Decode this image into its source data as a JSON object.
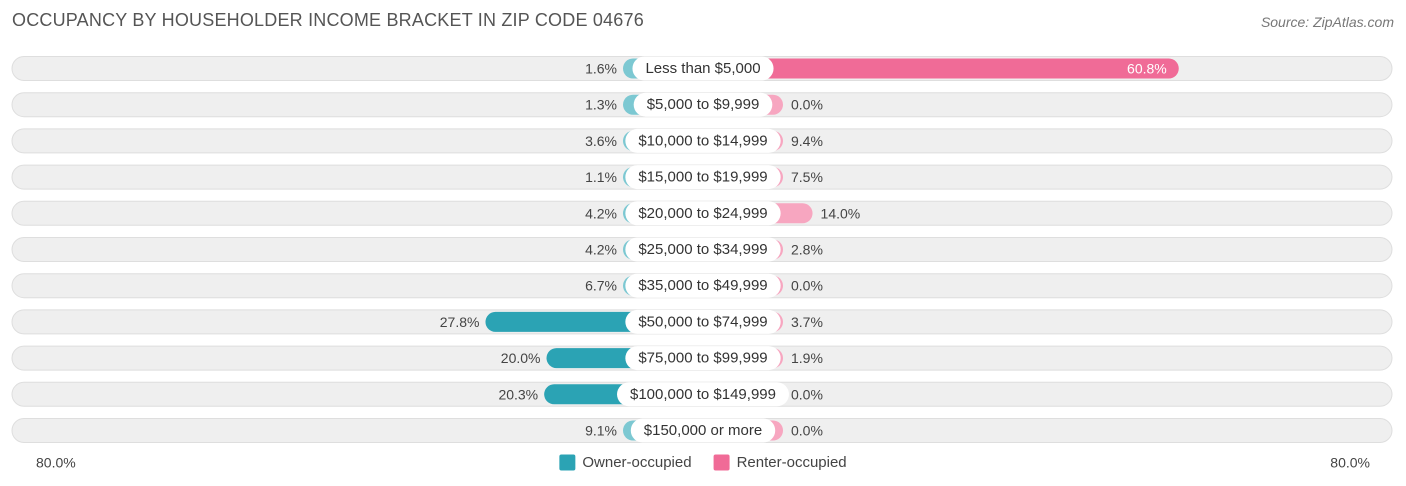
{
  "title": "OCCUPANCY BY HOUSEHOLDER INCOME BRACKET IN ZIP CODE 04676",
  "source": "Source: ZipAtlas.com",
  "colors": {
    "owner_strong": "#2ba3b4",
    "owner_light": "#7cc8d2",
    "renter_strong": "#f06b97",
    "renter_light": "#f7a6c0",
    "row_background": "#efefef"
  },
  "chart_data": {
    "type": "bar",
    "orientation": "horizontal-diverging",
    "categories": [
      "Less than $5,000",
      "$5,000 to $9,999",
      "$10,000 to $14,999",
      "$15,000 to $19,999",
      "$20,000 to $24,999",
      "$25,000 to $34,999",
      "$35,000 to $49,999",
      "$50,000 to $74,999",
      "$75,000 to $99,999",
      "$100,000 to $149,999",
      "$150,000 or more"
    ],
    "series": [
      {
        "name": "Owner-occupied",
        "values": [
          1.6,
          1.3,
          3.6,
          1.1,
          4.2,
          4.2,
          6.7,
          27.8,
          20.0,
          20.3,
          9.1
        ],
        "labels": [
          "1.6%",
          "1.3%",
          "3.6%",
          "1.1%",
          "4.2%",
          "4.2%",
          "6.7%",
          "27.8%",
          "20.0%",
          "20.3%",
          "9.1%"
        ]
      },
      {
        "name": "Renter-occupied",
        "values": [
          60.8,
          0.0,
          9.4,
          7.5,
          14.0,
          2.8,
          0.0,
          3.7,
          1.9,
          0.0,
          0.0
        ],
        "labels": [
          "60.8%",
          "0.0%",
          "9.4%",
          "7.5%",
          "14.0%",
          "2.8%",
          "0.0%",
          "3.7%",
          "1.9%",
          "0.0%",
          "0.0%"
        ]
      }
    ],
    "xlim": [
      -80,
      80
    ],
    "axis_labels": {
      "left": "80.0%",
      "right": "80.0%"
    },
    "legend": {
      "placement": "bottom-center"
    },
    "grid": false
  }
}
